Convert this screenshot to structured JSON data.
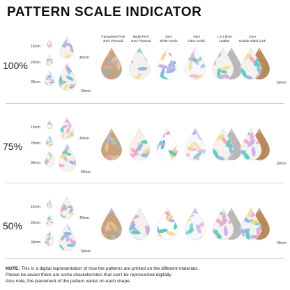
{
  "title": "PATTERN SCALE INDICATOR",
  "materials": [
    {
      "line1": "Transparent Print",
      "line2": "3mm Plywood"
    },
    {
      "line1": "Bright Print",
      "line2": "3mm Plywood"
    },
    {
      "line1": "3mm",
      "line2": "White Acrylic"
    },
    {
      "line1": "3mm",
      "line2": "Clear Acrylic"
    },
    {
      "line1": "1.6-1.8mm",
      "line2": "Leather"
    },
    {
      "line1": "2mm",
      "line2": "Double Sided Cork"
    }
  ],
  "rows": [
    {
      "scale": "100%",
      "size_small": "15mm",
      "size_medium": "20mm",
      "size_large": "30mm",
      "size_xl": "40mm",
      "size_xxl": "50mm",
      "size_display": "60mm"
    },
    {
      "scale": "75%",
      "size_small": "15mm",
      "size_medium": "20mm",
      "size_large": "30mm",
      "size_xl": "40mm",
      "size_xxl": "50mm",
      "size_display": "60mm"
    },
    {
      "scale": "50%",
      "size_small": "15mm",
      "size_medium": "20mm",
      "size_large": "30mm",
      "size_xl": "40mm",
      "size_xxl": "50mm",
      "size_display": "60mm"
    }
  ],
  "note": {
    "label": "NOTE:",
    "line1": "This is a digital representation of how the patterns are printed on the different materials.",
    "line2": "Please be aware there are some characteristics that can't be represented digitally.",
    "line3": "Also note, the placement of the pattern varies on each shape."
  },
  "colors": {
    "plywood": "#c9a27c",
    "cork": "#b98a5a",
    "leather": "#b9b9b9",
    "pattern_teal": "#5fc9c4",
    "pattern_pink": "#f2a9c6",
    "pattern_lilac": "#c7b2e6",
    "pattern_yellow": "#f3dc95",
    "pattern_blue": "#8fb8e8"
  }
}
